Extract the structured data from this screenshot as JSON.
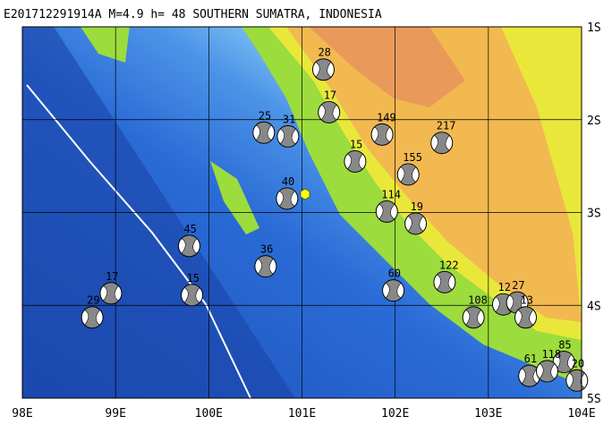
{
  "title": "E201712291914A  M=4.9 h= 48 SOUTHERN SUMATRA, INDONESIA",
  "lon_ticks": [
    {
      "value": 98,
      "label": "98E"
    },
    {
      "value": 99,
      "label": "99E"
    },
    {
      "value": 100,
      "label": "100E"
    },
    {
      "value": 101,
      "label": "101E"
    },
    {
      "value": 102,
      "label": "102E"
    },
    {
      "value": 103,
      "label": "103E"
    },
    {
      "value": 104,
      "label": "104E"
    }
  ],
  "lat_ticks": [
    {
      "value": -1,
      "label": "1S"
    },
    {
      "value": -2,
      "label": "2S"
    },
    {
      "value": -3,
      "label": "3S"
    },
    {
      "value": -4,
      "label": "4S"
    },
    {
      "value": -5,
      "label": "5S"
    }
  ],
  "lon_range": [
    98,
    104
  ],
  "lat_range": [
    -1,
    -5
  ],
  "events": [
    {
      "lon": 101.23,
      "lat": -1.46,
      "depth": 28
    },
    {
      "lon": 101.29,
      "lat": -1.92,
      "depth": 17
    },
    {
      "lon": 101.86,
      "lat": -2.16,
      "depth": 149
    },
    {
      "lon": 102.5,
      "lat": -2.25,
      "depth": 217
    },
    {
      "lon": 101.57,
      "lat": -2.45,
      "depth": 15
    },
    {
      "lon": 102.14,
      "lat": -2.59,
      "depth": 155
    },
    {
      "lon": 101.91,
      "lat": -2.99,
      "depth": 114
    },
    {
      "lon": 102.22,
      "lat": -3.12,
      "depth": 19
    },
    {
      "lon": 102.53,
      "lat": -3.75,
      "depth": 122
    },
    {
      "lon": 102.84,
      "lat": -4.13,
      "depth": 108
    },
    {
      "lon": 103.16,
      "lat": -3.99,
      "depth": 12
    },
    {
      "lon": 103.31,
      "lat": -3.97,
      "depth": 27
    },
    {
      "lon": 103.4,
      "lat": -4.13,
      "depth": 13
    },
    {
      "lon": 103.44,
      "lat": -4.76,
      "depth": 61
    },
    {
      "lon": 103.81,
      "lat": -4.61,
      "depth": 85
    },
    {
      "lon": 103.63,
      "lat": -4.71,
      "depth": 118
    },
    {
      "lon": 103.95,
      "lat": -4.81,
      "depth": 20
    },
    {
      "lon": 98.75,
      "lat": -4.13,
      "depth": 29
    },
    {
      "lon": 98.95,
      "lat": -3.87,
      "depth": 17
    },
    {
      "lon": 100.61,
      "lat": -3.58,
      "depth": 36
    },
    {
      "lon": 100.84,
      "lat": -2.85,
      "depth": 40
    },
    {
      "lon": 100.85,
      "lat": -2.18,
      "depth": 31
    },
    {
      "lon": 100.59,
      "lat": -2.14,
      "depth": 25
    },
    {
      "lon": 99.79,
      "lat": -3.36,
      "depth": 45
    },
    {
      "lon": 101.98,
      "lat": -3.84,
      "depth": 60
    },
    {
      "lon": 99.82,
      "lat": -3.89,
      "depth": 15
    }
  ]
}
